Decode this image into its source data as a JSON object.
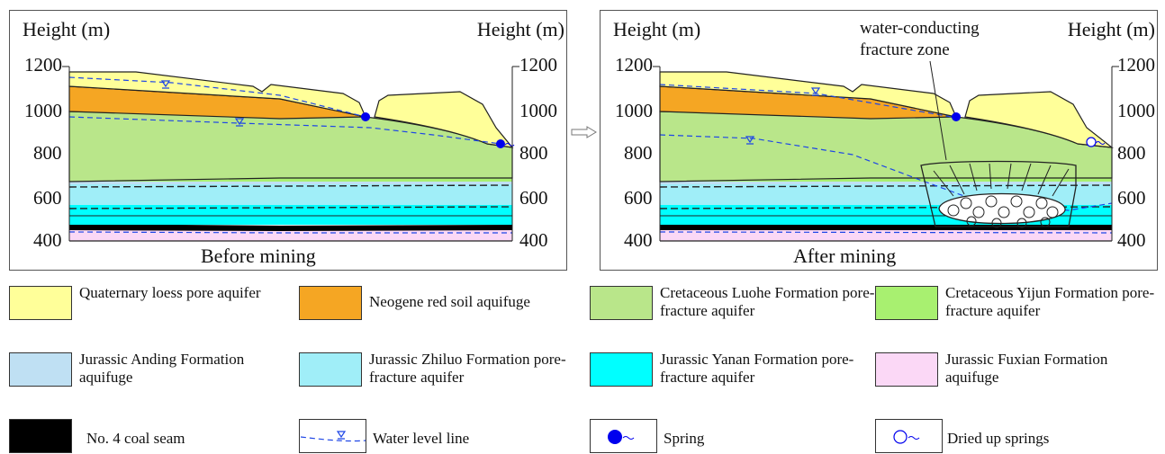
{
  "left_panel": {
    "y_axis_left_title": "Height (m)",
    "y_axis_right_title": "Height (m)",
    "ticks": [
      "1200",
      "1000",
      "800",
      "600",
      "400"
    ],
    "caption": "Before mining"
  },
  "right_panel": {
    "y_axis_left_title": "Height (m)",
    "y_axis_right_title": "Height (m)",
    "ticks": [
      "1200",
      "1000",
      "800",
      "600",
      "400"
    ],
    "caption": "After mining",
    "annotation_line1": "water-conducting",
    "annotation_line2": "fracture zone"
  },
  "colors": {
    "loess": "#ffff99",
    "neogene": "#f5a623",
    "luohe": "#b9e68a",
    "yijun": "#a8f070",
    "anding": "#bfe0f3",
    "zhiluo": "#a0eef8",
    "yanan": "#00ffff",
    "fuxian": "#fbd8f6",
    "coal": "#000000",
    "water": "#1e46e6",
    "spring": "#0000ee"
  },
  "legend": [
    {
      "label": "Quaternary loess pore aquifer",
      "swatch": "loess"
    },
    {
      "label": "Neogene red soil aquifuge",
      "swatch": "neogene"
    },
    {
      "label": "Cretaceous Luohe Formation pore-fracture aquifer",
      "swatch": "luohe"
    },
    {
      "label": "Cretaceous  Yijun Formation pore-fracture aquifer",
      "swatch": "yijun"
    },
    {
      "label": "Jurassic Anding Formation aquifuge",
      "swatch": "anding"
    },
    {
      "label": "Jurassic Zhiluo Formation pore-fracture aquifer",
      "swatch": "zhiluo"
    },
    {
      "label": "Jurassic Yanan Formation pore-fracture aquifer",
      "swatch": "yanan"
    },
    {
      "label": "Jurassic Fuxian Formation aquifuge",
      "swatch": "fuxian"
    },
    {
      "label": "No. 4 coal seam",
      "swatch": "coal"
    },
    {
      "label": "Water level line",
      "swatch": "water-level-icon"
    },
    {
      "label": "Spring",
      "swatch": "spring-icon"
    },
    {
      "label": "Dried up springs",
      "swatch": "dried-spring-icon"
    }
  ]
}
